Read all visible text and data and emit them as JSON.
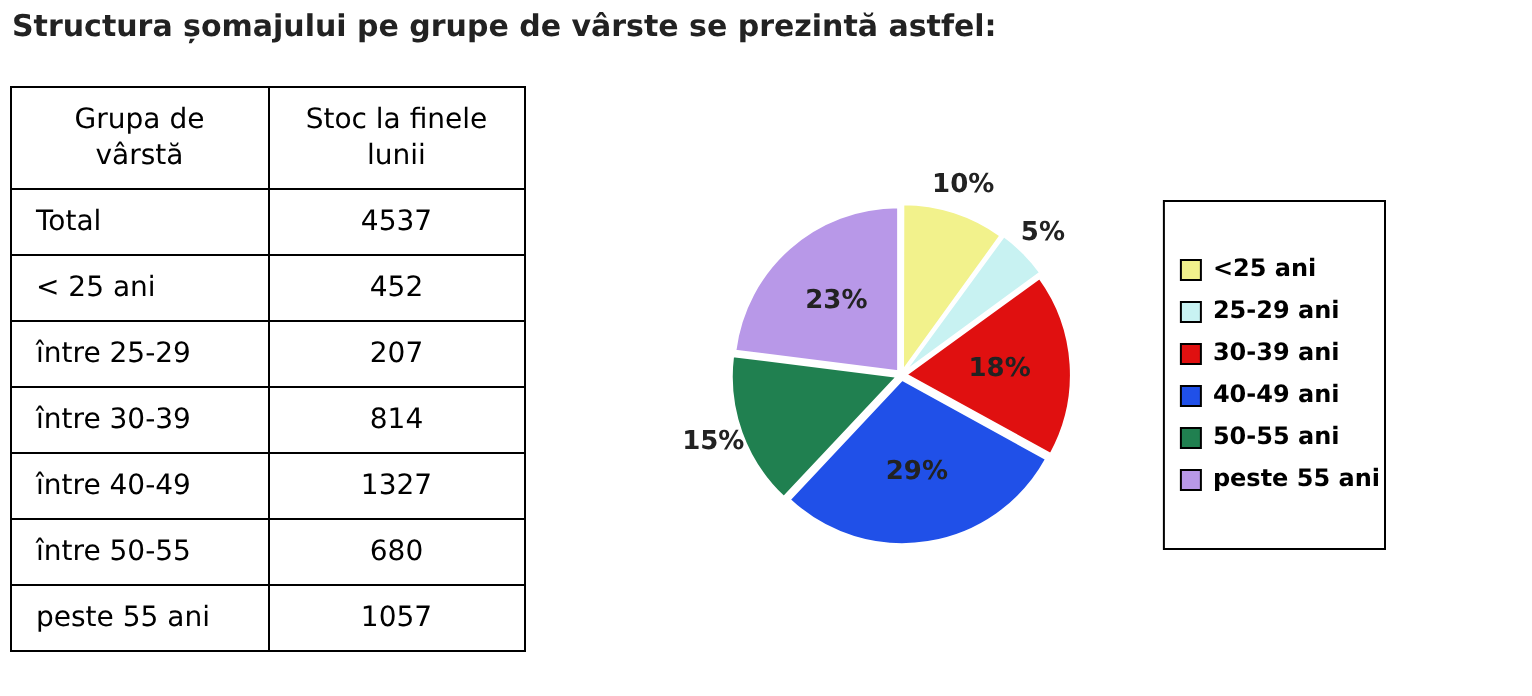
{
  "chart_data": [
    {
      "type": "other",
      "title": "Structura șomajului pe grupe de vârste se prezintă astfel:",
      "xlabel": "Grupa de vârstă",
      "ylabel": "Stoc la finele lunii",
      "categories": [
        "Total",
        "< 25 ani",
        "între 25-29",
        "între 30-39",
        "între 40-49",
        "între 50-55",
        "peste 55 ani"
      ],
      "values": [
        4537,
        452,
        207,
        814,
        1327,
        680,
        1057
      ],
      "data_labels": true
    },
    {
      "type": "pie",
      "categories": [
        "<25 ani",
        "25-29 ani",
        "30-39 ani",
        "40-49 ani",
        "50-55 ani",
        "peste 55 ani"
      ],
      "values": [
        10,
        5,
        18,
        29,
        15,
        23
      ],
      "colors": [
        "#f2f28c",
        "#c8f2f2",
        "#e01010",
        "#2050e8",
        "#208050",
        "#b898e8"
      ],
      "value_labels": [
        "10%",
        "5%",
        "18%",
        "29%",
        "15%",
        "23%"
      ],
      "legend": "right"
    }
  ]
}
